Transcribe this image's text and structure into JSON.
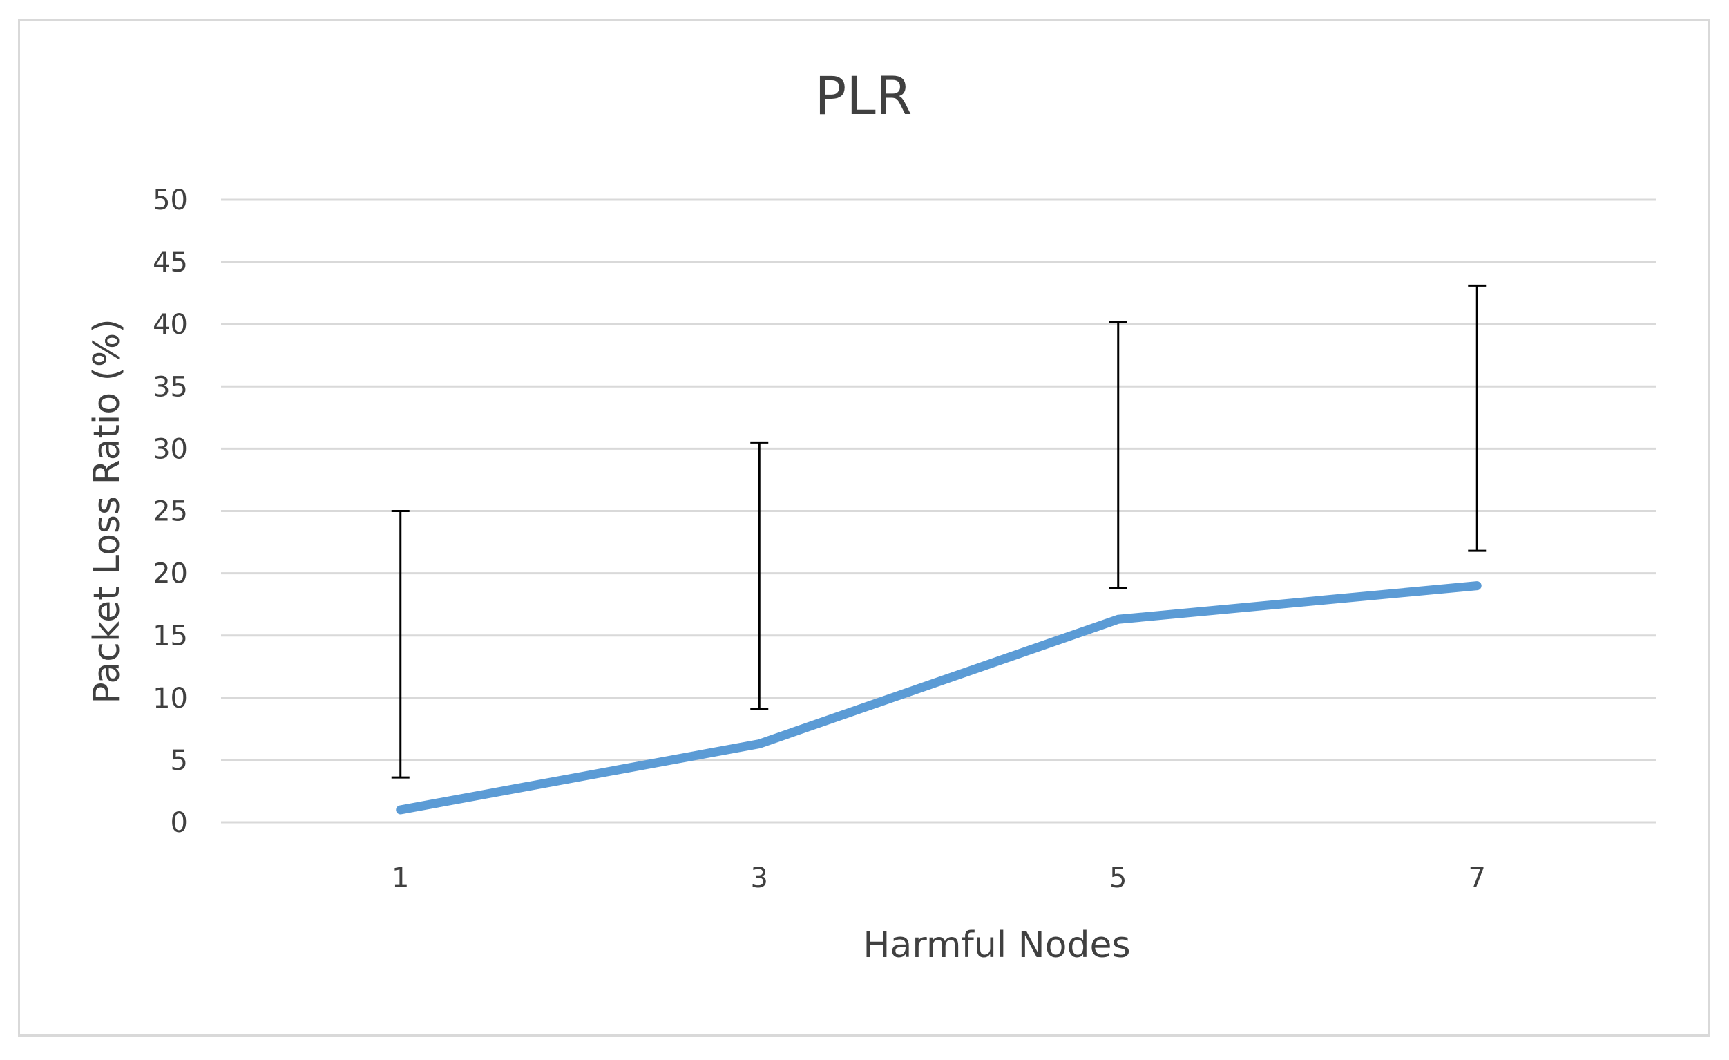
{
  "chart_data": {
    "type": "line",
    "title": "PLR",
    "xlabel": "Harmful Nodes",
    "ylabel": "Packet Loss Ratio (%)",
    "categories": [
      "1",
      "3",
      "5",
      "7"
    ],
    "ylim": [
      0,
      50
    ],
    "yticks": [
      "0",
      "5",
      "10",
      "15",
      "20",
      "25",
      "30",
      "35",
      "40",
      "45",
      "50"
    ],
    "grid": true,
    "legend": "none",
    "series": [
      {
        "values": [
          1.0,
          6.3,
          16.3,
          19.0
        ],
        "color": "#5b9bd5",
        "error_low": [
          3.6,
          9.1,
          18.8,
          21.8
        ],
        "error_high": [
          25.0,
          30.5,
          40.2,
          43.1
        ]
      }
    ]
  }
}
